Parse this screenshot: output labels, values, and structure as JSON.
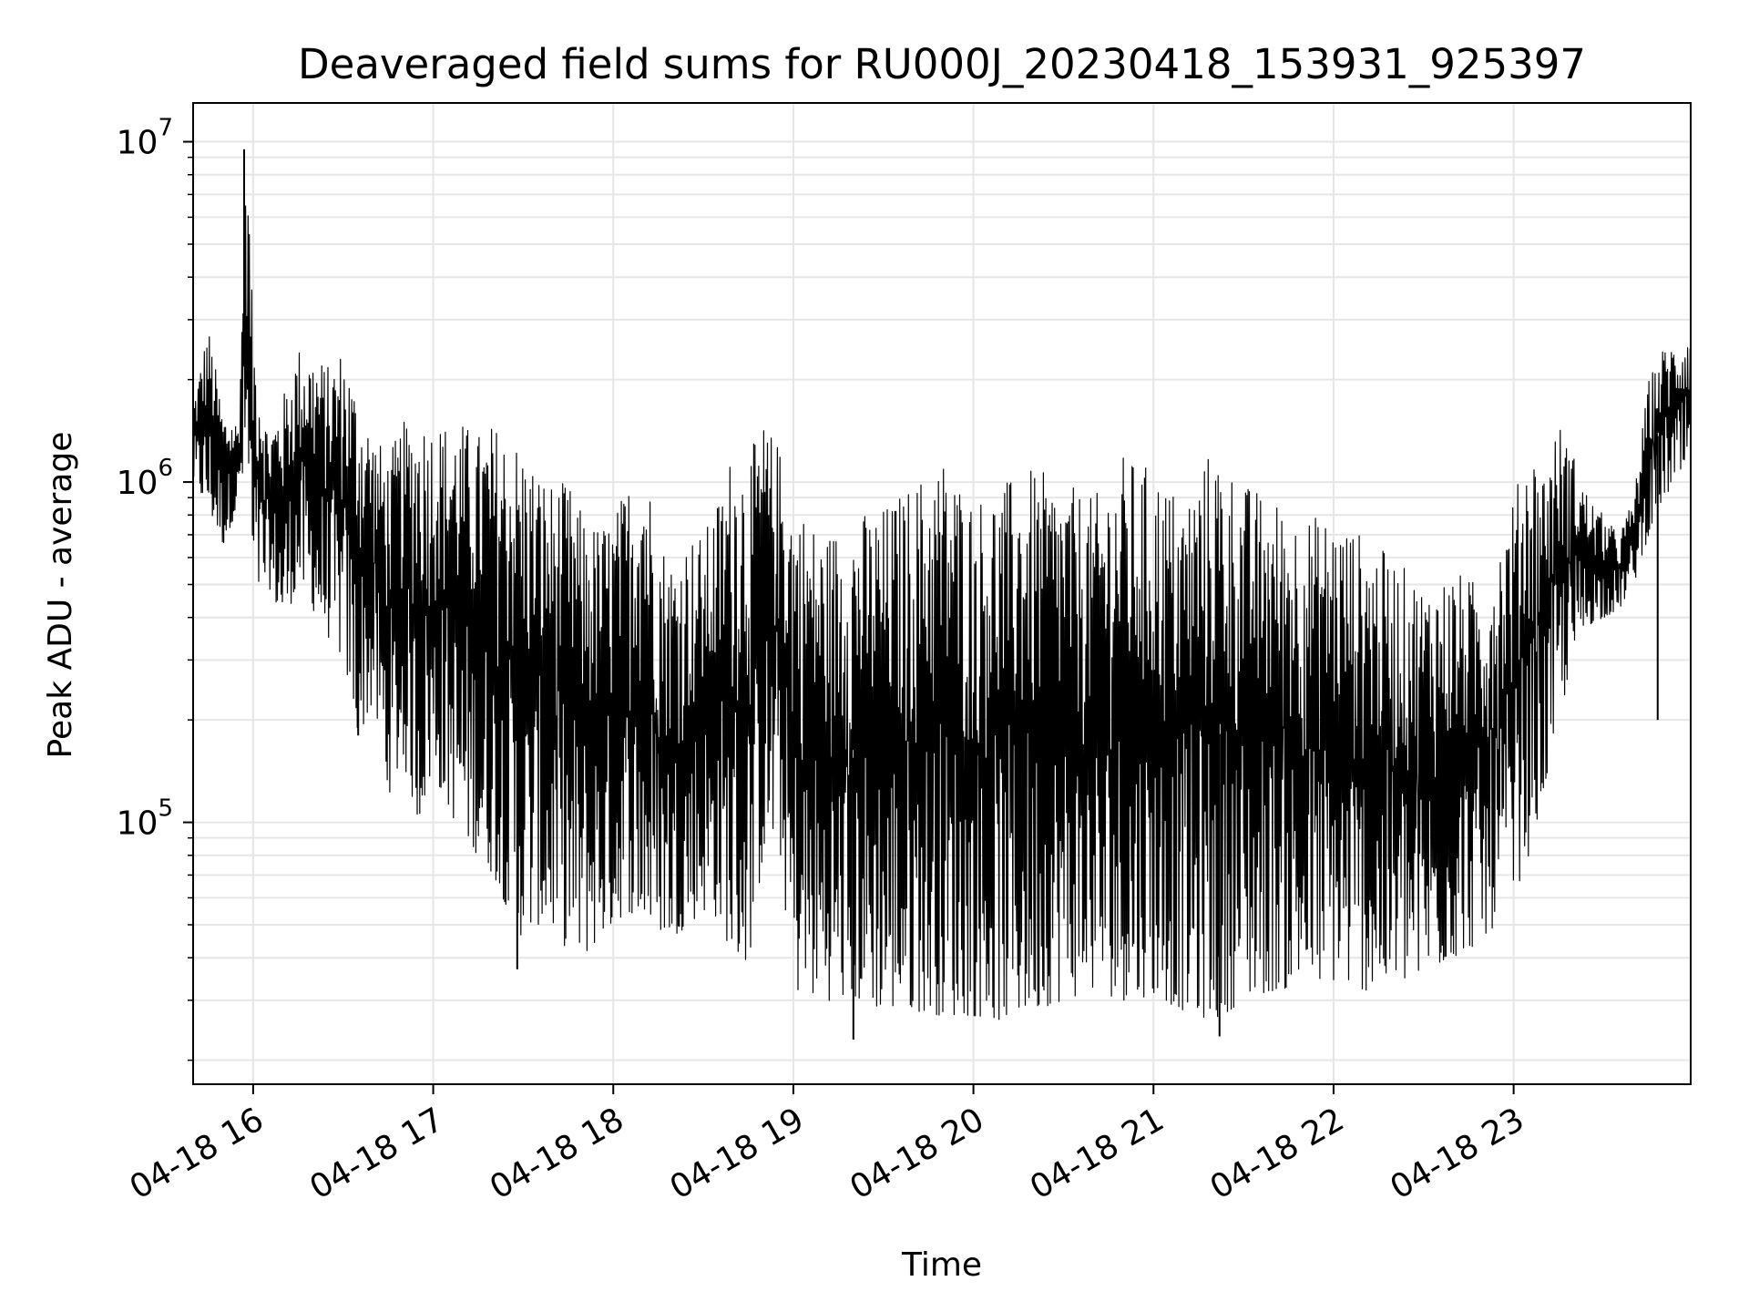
{
  "chart_data": {
    "type": "line",
    "title": "Deaveraged field sums for RU000J_20230418_153931_925397",
    "xlabel": "Time",
    "ylabel": "Peak ADU - average",
    "yscale": "log",
    "grid": true,
    "legend": "none",
    "line_color": "#000000",
    "xlim": [
      "2023-04-18T15:40",
      "2023-04-18T23:59"
    ],
    "ylim": [
      17000,
      13000000
    ],
    "x_ticks": [
      {
        "value": "2023-04-18T16:00",
        "label": "04-18 16"
      },
      {
        "value": "2023-04-18T17:00",
        "label": "04-18 17"
      },
      {
        "value": "2023-04-18T18:00",
        "label": "04-18 18"
      },
      {
        "value": "2023-04-18T19:00",
        "label": "04-18 19"
      },
      {
        "value": "2023-04-18T20:00",
        "label": "04-18 20"
      },
      {
        "value": "2023-04-18T21:00",
        "label": "04-18 21"
      },
      {
        "value": "2023-04-18T22:00",
        "label": "04-18 22"
      },
      {
        "value": "2023-04-18T23:00",
        "label": "04-18 23"
      }
    ],
    "y_ticks": [
      {
        "value": 100000,
        "base": "10",
        "exp": "5"
      },
      {
        "value": 1000000,
        "base": "10",
        "exp": "6"
      },
      {
        "value": 10000000,
        "base": "10",
        "exp": "7"
      }
    ],
    "series": [
      {
        "x": [
          "2023-04-18T15:40",
          "2023-04-18T15:45",
          "2023-04-18T15:50",
          "2023-04-18T15:55",
          "2023-04-18T15:58",
          "2023-04-18T16:00",
          "2023-04-18T16:05",
          "2023-04-18T16:10",
          "2023-04-18T16:15",
          "2023-04-18T16:20",
          "2023-04-18T16:25",
          "2023-04-18T16:30",
          "2023-04-18T16:35",
          "2023-04-18T16:40",
          "2023-04-18T16:45",
          "2023-04-18T16:50",
          "2023-04-18T16:55",
          "2023-04-18T17:00",
          "2023-04-18T17:05",
          "2023-04-18T17:10",
          "2023-04-18T17:15",
          "2023-04-18T17:20",
          "2023-04-18T17:25",
          "2023-04-18T17:30",
          "2023-04-18T17:35",
          "2023-04-18T17:40",
          "2023-04-18T17:45",
          "2023-04-18T17:50",
          "2023-04-18T17:55",
          "2023-04-18T18:00",
          "2023-04-18T18:05",
          "2023-04-18T18:10",
          "2023-04-18T18:15",
          "2023-04-18T18:20",
          "2023-04-18T18:25",
          "2023-04-18T18:30",
          "2023-04-18T18:35",
          "2023-04-18T18:40",
          "2023-04-18T18:45",
          "2023-04-18T18:50",
          "2023-04-18T18:55",
          "2023-04-18T19:00",
          "2023-04-18T19:10",
          "2023-04-18T19:20",
          "2023-04-18T19:30",
          "2023-04-18T19:40",
          "2023-04-18T19:50",
          "2023-04-18T20:00",
          "2023-04-18T20:10",
          "2023-04-18T20:20",
          "2023-04-18T20:30",
          "2023-04-18T20:40",
          "2023-04-18T20:50",
          "2023-04-18T21:00",
          "2023-04-18T21:10",
          "2023-04-18T21:20",
          "2023-04-18T21:30",
          "2023-04-18T21:40",
          "2023-04-18T21:50",
          "2023-04-18T22:00",
          "2023-04-18T22:10",
          "2023-04-18T22:20",
          "2023-04-18T22:30",
          "2023-04-18T22:40",
          "2023-04-18T22:50",
          "2023-04-18T23:00",
          "2023-04-18T23:05",
          "2023-04-18T23:10",
          "2023-04-18T23:15",
          "2023-04-18T23:20",
          "2023-04-18T23:25",
          "2023-04-18T23:30",
          "2023-04-18T23:35",
          "2023-04-18T23:40",
          "2023-04-18T23:45",
          "2023-04-18T23:50",
          "2023-04-18T23:55",
          "2023-04-18T23:59"
        ],
        "upper": [
          1700000,
          2900000,
          1600000,
          1500000,
          9500000,
          2800000,
          1400000,
          1800000,
          2500000,
          2400000,
          2200000,
          2500000,
          1800000,
          1400000,
          1200000,
          1500000,
          1600000,
          1500000,
          1500000,
          1500000,
          1400000,
          1500000,
          1400000,
          1300000,
          1100000,
          1000000,
          1000000,
          800000,
          750000,
          800000,
          1000000,
          1300000,
          700000,
          600000,
          700000,
          700000,
          900000,
          1300000,
          1200000,
          1500000,
          1300000,
          900000,
          700000,
          800000,
          850000,
          1000000,
          1200000,
          900000,
          1000000,
          1100000,
          1000000,
          900000,
          1200000,
          1100000,
          900000,
          1300000,
          1000000,
          900000,
          800000,
          800000,
          700000,
          600000,
          500000,
          550000,
          500000,
          900000,
          1300000,
          1100000,
          1500000,
          1200000,
          900000,
          800000,
          700000,
          900000,
          2000000,
          2500000,
          2600000,
          2900000
        ],
        "lower": [
          1000000,
          820000,
          650000,
          850000,
          1100000,
          450000,
          500000,
          380000,
          500000,
          420000,
          350000,
          300000,
          180000,
          220000,
          120000,
          150000,
          100000,
          140000,
          110000,
          90000,
          80000,
          70000,
          55000,
          45000,
          50000,
          48000,
          42000,
          40000,
          45000,
          50000,
          55000,
          50000,
          48000,
          46000,
          50000,
          55000,
          52000,
          40000,
          38000,
          80000,
          90000,
          32000,
          30000,
          30000,
          28000,
          28000,
          27000,
          27000,
          26000,
          28000,
          30000,
          32000,
          30000,
          31000,
          28000,
          26000,
          30000,
          32000,
          33000,
          34000,
          32000,
          33000,
          35000,
          40000,
          45000,
          60000,
          80000,
          120000,
          200000,
          300000,
          380000,
          400000,
          420000,
          500000,
          700000,
          900000,
          1000000,
          1100000
        ]
      }
    ],
    "spikes": [
      {
        "x": "2023-04-18T15:57",
        "y": 9500000
      },
      {
        "x": "2023-04-18T15:57",
        "y": 5800000
      },
      {
        "x": "2023-04-18T16:35",
        "y": 180000
      },
      {
        "x": "2023-04-18T17:28",
        "y": 37000
      },
      {
        "x": "2023-04-18T19:20",
        "y": 23000
      },
      {
        "x": "2023-04-18T21:22",
        "y": 23500
      },
      {
        "x": "2023-04-18T23:48",
        "y": 200000
      }
    ]
  }
}
